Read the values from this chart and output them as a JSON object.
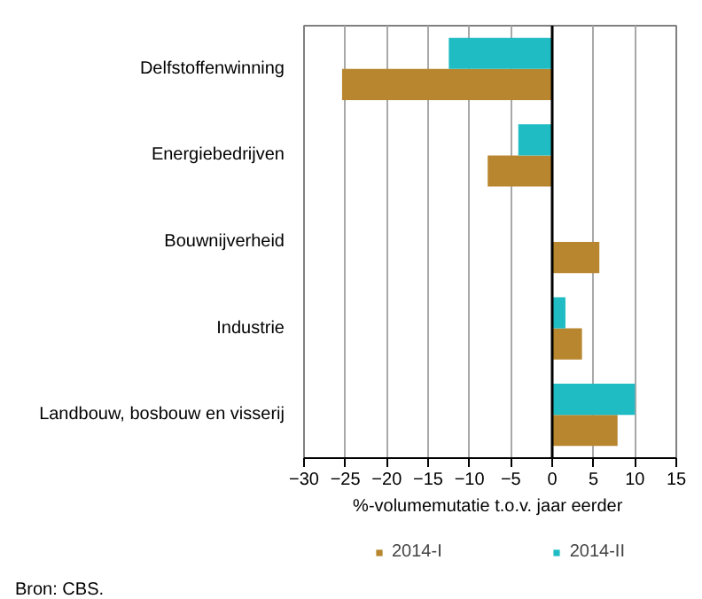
{
  "chart_data": {
    "type": "bar",
    "orientation": "horizontal",
    "categories": [
      "Delfstoffenwinning",
      "Energiebedrijven",
      "Bouwnijverheid",
      "Industrie",
      "Landbouw, bosbouw en visserij"
    ],
    "series": [
      {
        "name": "2014-I",
        "color": "#b8862f",
        "values": [
          -25.4,
          -7.8,
          5.7,
          3.6,
          7.9
        ]
      },
      {
        "name": "2014-II",
        "color": "#1fbcc4",
        "values": [
          -12.5,
          -4.1,
          0,
          1.6,
          10.0
        ]
      }
    ],
    "xlabel": "%-volumemutatie  t.o.v. jaar eerder",
    "xlim": [
      -30,
      15
    ],
    "xticks": [
      -30,
      -25,
      -20,
      -15,
      -10,
      -5,
      0,
      5,
      10,
      15
    ],
    "grid": "x",
    "legend": "bottom",
    "annotations": [
      "Bron: CBS."
    ]
  }
}
